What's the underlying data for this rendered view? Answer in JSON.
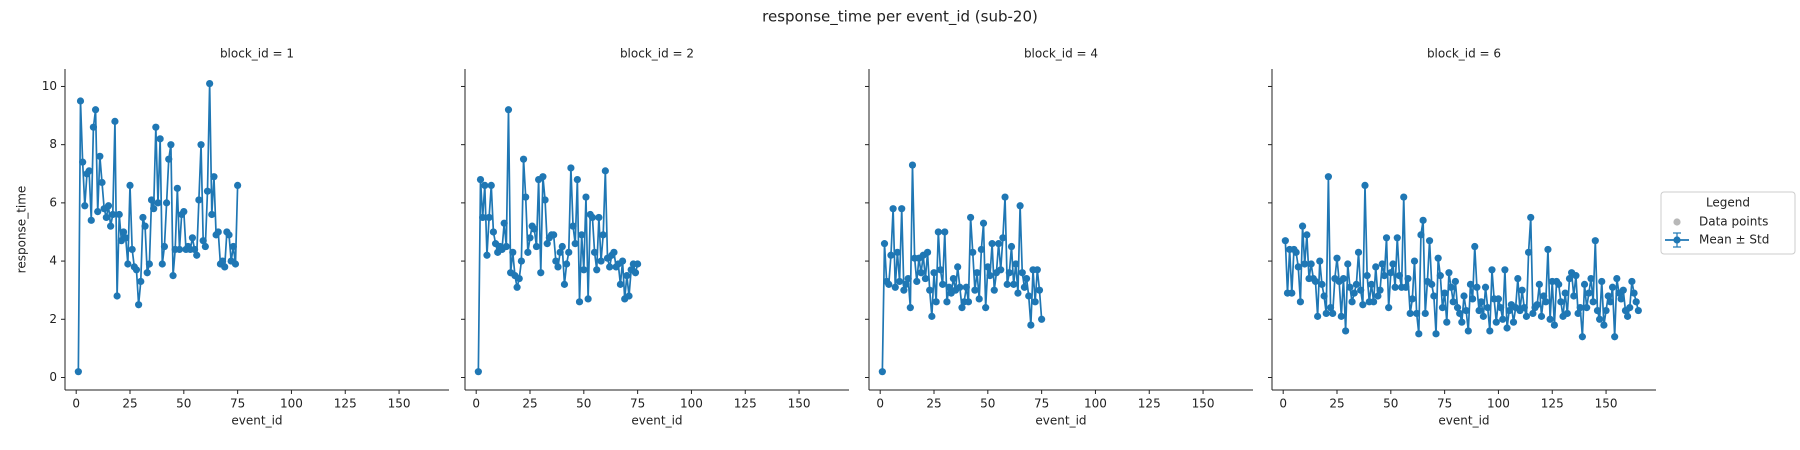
{
  "title": "response_time per event_id (sub-20)",
  "legend": {
    "title": "Legend",
    "entries": [
      {
        "name": "Data points",
        "color": "#b8b8b8"
      },
      {
        "name": "Mean ± Std",
        "color": "#1f77b4"
      }
    ]
  },
  "chart_data": [
    {
      "type": "line",
      "title": "block_id = 1",
      "xlabel": "event_id",
      "ylabel": "response_time",
      "color": "#1f77b4",
      "xlim": [
        -5.2,
        173.2
      ],
      "xticks": [
        0,
        25,
        50,
        75,
        100,
        125,
        150
      ],
      "ylim": [
        -0.43,
        10.6
      ],
      "yticks": [
        0,
        2,
        4,
        6,
        8,
        10
      ],
      "x": [
        1,
        2,
        3,
        4,
        5,
        6,
        7,
        8,
        9,
        10,
        11,
        12,
        13,
        14,
        15,
        16,
        17,
        18,
        19,
        20,
        21,
        22,
        23,
        24,
        25,
        26,
        27,
        28,
        29,
        30,
        31,
        32,
        33,
        34,
        35,
        36,
        37,
        38,
        39,
        40,
        41,
        42,
        43,
        44,
        45,
        46,
        47,
        48,
        49,
        50,
        51,
        52,
        53,
        54,
        55,
        56,
        57,
        58,
        59,
        60,
        61,
        62,
        63,
        64,
        65,
        66,
        67,
        68,
        69,
        70,
        71,
        72,
        73,
        74,
        75
      ],
      "values": [
        0.2,
        9.5,
        7.4,
        5.9,
        7.0,
        7.1,
        5.4,
        8.6,
        9.2,
        5.7,
        7.6,
        6.7,
        5.8,
        5.5,
        5.9,
        5.2,
        5.6,
        8.8,
        2.8,
        5.6,
        4.7,
        5.0,
        4.8,
        3.9,
        6.6,
        4.4,
        3.8,
        3.7,
        2.5,
        3.3,
        5.5,
        5.2,
        3.6,
        3.9,
        6.1,
        5.8,
        8.6,
        6.0,
        8.2,
        3.9,
        4.5,
        6.0,
        7.5,
        8.0,
        3.5,
        4.4,
        6.5,
        4.4,
        5.6,
        5.7,
        4.4,
        4.5,
        4.4,
        4.8,
        4.4,
        4.2,
        6.1,
        8.0,
        4.7,
        4.5,
        6.4,
        10.1,
        5.6,
        6.9,
        4.9,
        5.0,
        3.9,
        4.0,
        3.8,
        5.0,
        4.9,
        4.0,
        4.5,
        3.9,
        6.6
      ]
    },
    {
      "type": "line",
      "title": "block_id = 2",
      "xlabel": "event_id",
      "color": "#1f77b4",
      "xlim": [
        -5.2,
        173.2
      ],
      "xticks": [
        0,
        25,
        50,
        75,
        100,
        125,
        150
      ],
      "x": [
        1,
        2,
        3,
        4,
        5,
        6,
        7,
        8,
        9,
        10,
        11,
        12,
        13,
        14,
        15,
        16,
        17,
        18,
        19,
        20,
        21,
        22,
        23,
        24,
        25,
        26,
        27,
        28,
        29,
        30,
        31,
        32,
        33,
        34,
        35,
        36,
        37,
        38,
        39,
        40,
        41,
        42,
        43,
        44,
        45,
        46,
        47,
        48,
        49,
        50,
        51,
        52,
        53,
        54,
        55,
        56,
        57,
        58,
        59,
        60,
        61,
        62,
        63,
        64,
        65,
        66,
        67,
        68,
        69,
        70,
        71,
        72,
        73,
        74,
        75
      ],
      "values": [
        0.2,
        6.8,
        5.5,
        6.6,
        4.2,
        5.5,
        6.6,
        5.0,
        4.6,
        4.3,
        4.5,
        4.4,
        5.3,
        4.5,
        9.2,
        3.6,
        4.3,
        3.5,
        3.1,
        3.4,
        4.0,
        7.5,
        6.2,
        4.3,
        4.8,
        5.2,
        5.1,
        4.5,
        6.8,
        3.6,
        6.9,
        6.1,
        4.6,
        4.8,
        4.9,
        4.9,
        4.0,
        3.8,
        4.3,
        4.5,
        3.2,
        3.9,
        4.3,
        7.2,
        5.2,
        4.6,
        6.8,
        2.6,
        4.9,
        3.7,
        6.2,
        2.7,
        5.6,
        5.5,
        4.3,
        3.7,
        5.5,
        4.0,
        4.9,
        7.1,
        4.1,
        3.8,
        4.2,
        4.3,
        3.8,
        3.9,
        3.2,
        4.0,
        2.7,
        3.5,
        2.8,
        3.7,
        3.9,
        3.6,
        3.9
      ]
    },
    {
      "type": "line",
      "title": "block_id = 4",
      "xlabel": "event_id",
      "color": "#1f77b4",
      "xlim": [
        -5.2,
        173.2
      ],
      "xticks": [
        0,
        25,
        50,
        75,
        100,
        125,
        150
      ],
      "x": [
        1,
        2,
        3,
        4,
        5,
        6,
        7,
        8,
        9,
        10,
        11,
        12,
        13,
        14,
        15,
        16,
        17,
        18,
        19,
        20,
        21,
        22,
        23,
        24,
        25,
        26,
        27,
        28,
        29,
        30,
        31,
        32,
        33,
        34,
        35,
        36,
        37,
        38,
        39,
        40,
        41,
        42,
        43,
        44,
        45,
        46,
        47,
        48,
        49,
        50,
        51,
        52,
        53,
        54,
        55,
        56,
        57,
        58,
        59,
        60,
        61,
        62,
        63,
        64,
        65,
        66,
        67,
        68,
        69,
        70,
        71,
        72,
        73,
        74,
        75
      ],
      "values": [
        0.2,
        4.6,
        3.3,
        3.2,
        4.2,
        5.8,
        3.1,
        4.3,
        3.3,
        5.8,
        3.0,
        3.2,
        3.4,
        2.4,
        7.3,
        4.1,
        3.3,
        4.1,
        3.6,
        4.2,
        3.4,
        4.3,
        3.0,
        2.1,
        3.6,
        2.6,
        5.0,
        3.7,
        3.2,
        5.0,
        2.6,
        3.1,
        2.9,
        3.4,
        3.0,
        3.8,
        3.1,
        2.4,
        2.6,
        3.1,
        2.6,
        5.5,
        4.3,
        3.0,
        3.6,
        2.7,
        4.4,
        5.3,
        2.4,
        3.8,
        3.5,
        4.6,
        3.0,
        3.6,
        4.6,
        3.7,
        4.8,
        6.2,
        3.2,
        3.6,
        4.5,
        3.2,
        3.9,
        2.9,
        5.9,
        3.6,
        3.1,
        3.4,
        2.8,
        1.8,
        3.7,
        2.6,
        3.7,
        3.0,
        2.0
      ]
    },
    {
      "type": "line",
      "title": "block_id = 6",
      "xlabel": "event_id",
      "color": "#1f77b4",
      "xlim": [
        -5.2,
        173.2
      ],
      "xticks": [
        0,
        25,
        50,
        75,
        100,
        125,
        150
      ],
      "x": [
        1,
        2,
        3,
        4,
        5,
        6,
        7,
        8,
        9,
        10,
        11,
        12,
        13,
        14,
        15,
        16,
        17,
        18,
        19,
        20,
        21,
        22,
        23,
        24,
        25,
        26,
        27,
        28,
        29,
        30,
        31,
        32,
        33,
        34,
        35,
        36,
        37,
        38,
        39,
        40,
        41,
        42,
        43,
        44,
        45,
        46,
        47,
        48,
        49,
        50,
        51,
        52,
        53,
        54,
        55,
        56,
        57,
        58,
        59,
        60,
        61,
        62,
        63,
        64,
        65,
        66,
        67,
        68,
        69,
        70,
        71,
        72,
        73,
        74,
        75,
        76,
        77,
        78,
        79,
        80,
        81,
        82,
        83,
        84,
        85,
        86,
        87,
        88,
        89,
        90,
        91,
        92,
        93,
        94,
        95,
        96,
        97,
        98,
        99,
        100,
        101,
        102,
        103,
        104,
        105,
        106,
        107,
        108,
        109,
        110,
        111,
        112,
        113,
        114,
        115,
        116,
        117,
        118,
        119,
        120,
        121,
        122,
        123,
        124,
        125,
        126,
        127,
        128,
        129,
        130,
        131,
        132,
        133,
        134,
        135,
        136,
        137,
        138,
        139,
        140,
        141,
        142,
        143,
        144,
        145,
        146,
        147,
        148,
        149,
        150,
        151,
        152,
        153,
        154,
        155,
        156,
        157,
        158,
        159,
        160,
        161,
        162,
        163,
        164,
        165
      ],
      "values": [
        4.7,
        2.9,
        4.4,
        2.9,
        4.4,
        4.3,
        3.8,
        2.6,
        5.2,
        3.9,
        4.9,
        3.4,
        3.9,
        3.4,
        3.3,
        2.1,
        4.0,
        3.2,
        2.8,
        2.2,
        6.9,
        2.4,
        2.2,
        3.4,
        4.1,
        3.3,
        2.1,
        3.4,
        1.6,
        3.9,
        3.1,
        2.6,
        2.9,
        3.2,
        4.3,
        3.0,
        2.5,
        6.6,
        3.5,
        2.6,
        3.2,
        2.6,
        3.8,
        2.8,
        3.0,
        3.9,
        3.5,
        4.8,
        2.4,
        3.6,
        3.9,
        3.1,
        4.8,
        3.5,
        3.1,
        6.2,
        3.1,
        3.4,
        2.2,
        2.7,
        4.0,
        2.2,
        1.5,
        4.9,
        5.4,
        2.2,
        3.3,
        4.7,
        3.2,
        2.8,
        1.5,
        4.1,
        3.5,
        2.4,
        2.9,
        1.9,
        3.6,
        3.1,
        2.6,
        3.3,
        2.4,
        2.2,
        1.9,
        2.8,
        2.3,
        1.6,
        3.2,
        2.7,
        4.5,
        3.1,
        2.3,
        2.6,
        2.1,
        3.1,
        2.4,
        1.6,
        3.7,
        2.7,
        1.9,
        2.7,
        2.4,
        2.0,
        3.7,
        1.7,
        2.3,
        2.5,
        1.9,
        2.4,
        3.4,
        2.3,
        3.0,
        2.4,
        2.1,
        4.3,
        5.5,
        2.2,
        2.4,
        2.5,
        3.2,
        2.1,
        2.8,
        2.6,
        4.4,
        2.0,
        3.3,
        1.8,
        3.3,
        3.2,
        2.6,
        2.1,
        2.9,
        2.2,
        3.4,
        3.6,
        2.8,
        3.5,
        2.2,
        2.4,
        1.4,
        3.2,
        2.4,
        2.9,
        3.4,
        2.6,
        4.7,
        2.3,
        2.0,
        3.3,
        1.8,
        2.3,
        2.8,
        2.6,
        3.1,
        1.4,
        3.4,
        2.9,
        2.7,
        3.0,
        2.3,
        2.1,
        2.4,
        3.3,
        2.9,
        2.6,
        2.3
      ]
    }
  ]
}
